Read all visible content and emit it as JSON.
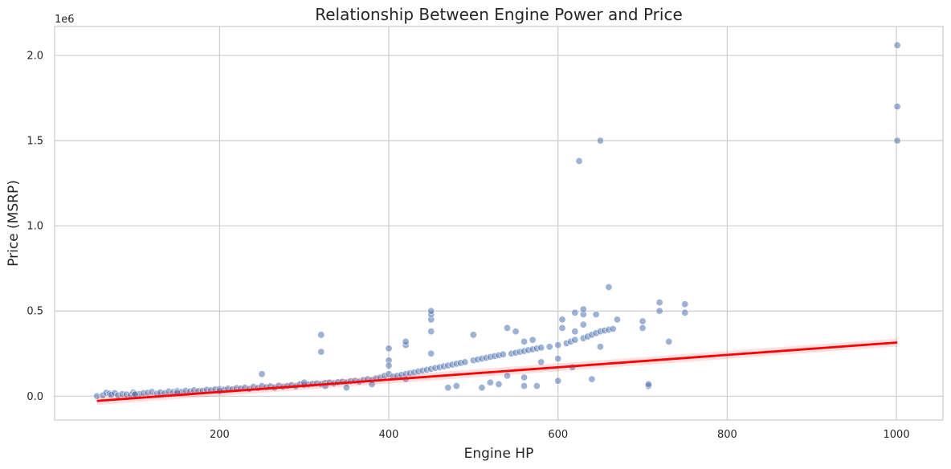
{
  "chart_data": {
    "type": "scatter",
    "title": "Relationship Between Engine Power and Price",
    "xlabel": "Engine HP",
    "ylabel": "Price (MSRP)",
    "y_offset_label": "1e6",
    "xlim": [
      5,
      1055
    ],
    "ylim": [
      -140000,
      2170000
    ],
    "x_ticks": [
      200,
      400,
      600,
      800,
      1000
    ],
    "x_tick_labels": [
      "200",
      "400",
      "600",
      "800",
      "1000"
    ],
    "y_ticks": [
      0,
      500000,
      1000000,
      1500000,
      2000000
    ],
    "y_tick_labels": [
      "0.0",
      "0.5",
      "1.0",
      "1.5",
      "2.0"
    ],
    "grid": true,
    "colors": {
      "points": "#4c72b0",
      "trend": "#ff0000",
      "grid": "#cccccc",
      "spine": "#cccccc"
    },
    "trend_line": {
      "x": [
        55,
        1001
      ],
      "y": [
        -28000,
        315000
      ]
    },
    "points": {
      "x": [
        55,
        62,
        66,
        70,
        72,
        76,
        80,
        85,
        90,
        95,
        98,
        100,
        105,
        110,
        115,
        120,
        126,
        130,
        135,
        140,
        145,
        150,
        155,
        160,
        165,
        170,
        175,
        180,
        185,
        190,
        195,
        200,
        205,
        210,
        215,
        220,
        225,
        230,
        235,
        240,
        245,
        250,
        255,
        260,
        265,
        270,
        275,
        280,
        285,
        290,
        295,
        300,
        305,
        310,
        315,
        320,
        325,
        330,
        335,
        340,
        345,
        350,
        355,
        360,
        365,
        370,
        375,
        380,
        385,
        390,
        395,
        400,
        400,
        400,
        400,
        405,
        410,
        415,
        420,
        420,
        420,
        425,
        430,
        435,
        440,
        445,
        450,
        450,
        450,
        450,
        450,
        450,
        455,
        460,
        465,
        470,
        475,
        480,
        485,
        490,
        500,
        500,
        505,
        510,
        515,
        520,
        525,
        530,
        535,
        540,
        545,
        550,
        550,
        555,
        560,
        560,
        565,
        570,
        570,
        575,
        580,
        580,
        590,
        600,
        600,
        605,
        605,
        610,
        615,
        617,
        620,
        620,
        620,
        625,
        630,
        630,
        630,
        630,
        635,
        640,
        645,
        645,
        650,
        650,
        650,
        655,
        660,
        660,
        665,
        670,
        700,
        700,
        707,
        707,
        720,
        720,
        731,
        750,
        750,
        1001,
        1001,
        1001,
        250,
        300,
        350,
        100,
        150,
        200,
        320,
        320,
        325,
        380,
        420,
        520,
        540,
        560,
        600,
        640,
        480,
        510,
        530,
        470,
        560,
        575
      ],
      "y": [
        0,
        5000,
        20000,
        15000,
        8000,
        18000,
        5000,
        12000,
        10000,
        8000,
        22000,
        15000,
        12000,
        18000,
        20000,
        25000,
        15000,
        22000,
        18000,
        28000,
        24000,
        30000,
        25000,
        32000,
        28000,
        35000,
        30000,
        32000,
        38000,
        35000,
        40000,
        42000,
        38000,
        45000,
        40000,
        48000,
        45000,
        50000,
        42000,
        55000,
        48000,
        60000,
        52000,
        58000,
        50000,
        62000,
        55000,
        60000,
        65000,
        58000,
        70000,
        65000,
        68000,
        72000,
        75000,
        70000,
        78000,
        80000,
        75000,
        82000,
        85000,
        80000,
        88000,
        90000,
        85000,
        95000,
        100000,
        95000,
        105000,
        110000,
        120000,
        130000,
        210000,
        280000,
        180000,
        115000,
        120000,
        125000,
        130000,
        300000,
        320000,
        135000,
        140000,
        145000,
        150000,
        155000,
        160000,
        250000,
        380000,
        450000,
        480000,
        500000,
        165000,
        170000,
        175000,
        180000,
        185000,
        190000,
        195000,
        200000,
        210000,
        360000,
        215000,
        220000,
        225000,
        230000,
        235000,
        240000,
        245000,
        400000,
        250000,
        255000,
        380000,
        260000,
        265000,
        320000,
        270000,
        275000,
        330000,
        280000,
        285000,
        200000,
        290000,
        300000,
        220000,
        400000,
        450000,
        310000,
        320000,
        170000,
        330000,
        380000,
        490000,
        1380000,
        340000,
        420000,
        480000,
        510000,
        350000,
        360000,
        370000,
        480000,
        380000,
        290000,
        1500000,
        385000,
        390000,
        640000,
        395000,
        450000,
        400000,
        440000,
        60000,
        70000,
        500000,
        550000,
        320000,
        490000,
        540000,
        2060000,
        1700000,
        1500000,
        130000,
        80000,
        50000,
        10000,
        20000,
        30000,
        260000,
        360000,
        60000,
        70000,
        100000,
        80000,
        120000,
        110000,
        90000,
        100000,
        60000,
        50000,
        70000,
        50000,
        60000,
        60000
      ]
    }
  }
}
